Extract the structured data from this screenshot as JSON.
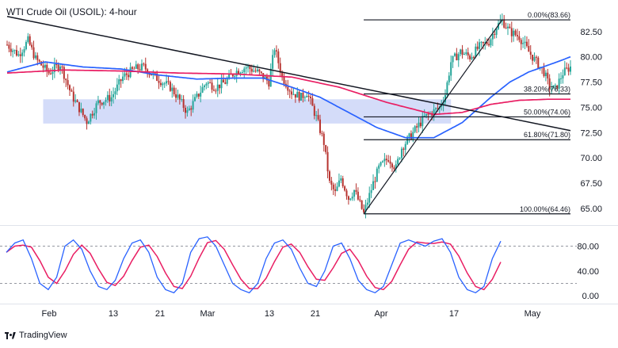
{
  "chart_data": {
    "type": "candlestick",
    "title": "WTI Crude Oil (USOIL): 4-hour",
    "symbol": "USOIL",
    "timeframe": "4-hour",
    "price_axis": {
      "ticks": [
        "82.50",
        "80.00",
        "77.50",
        "75.00",
        "72.50",
        "70.00",
        "67.50",
        "65.00"
      ],
      "ylim": [
        63.5,
        85.0
      ]
    },
    "x_axis": {
      "ticks": [
        "Feb",
        "13",
        "21",
        "Mar",
        "13",
        "21",
        "Apr",
        "17",
        "May"
      ]
    },
    "price_path": [
      [
        0,
        81.2
      ],
      [
        6,
        80.2
      ],
      [
        11,
        81.6
      ],
      [
        15,
        79.8
      ],
      [
        22,
        78.4
      ],
      [
        28,
        79.3
      ],
      [
        34,
        76.2
      ],
      [
        42,
        73.6
      ],
      [
        48,
        75.5
      ],
      [
        55,
        76.0
      ],
      [
        61,
        78.0
      ],
      [
        67,
        78.8
      ],
      [
        72,
        79.0
      ],
      [
        78,
        78.0
      ],
      [
        82,
        77.5
      ],
      [
        86,
        77.0
      ],
      [
        90,
        76.0
      ],
      [
        95,
        74.5
      ],
      [
        100,
        76.0
      ],
      [
        105,
        77.5
      ],
      [
        110,
        77.0
      ],
      [
        115,
        77.5
      ],
      [
        120,
        78.5
      ],
      [
        126,
        79.0
      ],
      [
        132,
        78.5
      ],
      [
        138,
        77.5
      ],
      [
        141,
        80.9
      ],
      [
        145,
        78.0
      ],
      [
        150,
        76.5
      ],
      [
        155,
        76.0
      ],
      [
        158,
        76.5
      ],
      [
        163,
        74.0
      ],
      [
        167,
        71.5
      ],
      [
        170,
        67.5
      ],
      [
        173,
        66.5
      ],
      [
        176,
        68.0
      ],
      [
        180,
        66.0
      ],
      [
        183,
        66.8
      ],
      [
        188,
        64.5
      ],
      [
        193,
        67.5
      ],
      [
        196,
        69.0
      ],
      [
        201,
        70.0
      ],
      [
        205,
        69.0
      ],
      [
        208,
        71.0
      ],
      [
        214,
        72.5
      ],
      [
        220,
        74.0
      ],
      [
        224,
        74.5
      ],
      [
        228,
        75.0
      ],
      [
        231,
        76.3
      ],
      [
        234,
        79.5
      ],
      [
        239,
        80.5
      ],
      [
        244,
        80.0
      ],
      [
        249,
        81.0
      ],
      [
        254,
        81.5
      ],
      [
        258,
        83.0
      ],
      [
        261,
        83.6
      ],
      [
        265,
        82.5
      ],
      [
        270,
        82.0
      ],
      [
        275,
        80.5
      ],
      [
        279,
        79.5
      ],
      [
        283,
        78.5
      ],
      [
        286,
        77.0
      ],
      [
        289,
        76.8
      ],
      [
        293,
        78.4
      ],
      [
        297,
        79.0
      ]
    ],
    "moving_averages": [
      {
        "color": "#2962ff",
        "values": [
          [
            0,
            78.5
          ],
          [
            20,
            79.5
          ],
          [
            40,
            79.0
          ],
          [
            60,
            78.8
          ],
          [
            80,
            78.2
          ],
          [
            100,
            77.8
          ],
          [
            120,
            77.9
          ],
          [
            135,
            77.9
          ],
          [
            150,
            77.0
          ],
          [
            165,
            76.0
          ],
          [
            180,
            74.5
          ],
          [
            195,
            73.0
          ],
          [
            210,
            72.0
          ],
          [
            225,
            72.0
          ],
          [
            240,
            73.5
          ],
          [
            255,
            76.0
          ],
          [
            265,
            77.5
          ],
          [
            275,
            78.5
          ],
          [
            290,
            79.5
          ],
          [
            297,
            80.0
          ]
        ]
      },
      {
        "color": "#e91e63",
        "values": [
          [
            0,
            78.4
          ],
          [
            30,
            78.7
          ],
          [
            60,
            78.6
          ],
          [
            90,
            78.4
          ],
          [
            120,
            78.3
          ],
          [
            150,
            78.0
          ],
          [
            175,
            77.0
          ],
          [
            200,
            75.5
          ],
          [
            225,
            74.3
          ],
          [
            240,
            74.5
          ],
          [
            255,
            75.3
          ],
          [
            270,
            75.7
          ],
          [
            285,
            75.8
          ],
          [
            297,
            75.8
          ]
        ]
      }
    ],
    "support_zone": [
      73.4,
      75.8
    ],
    "trendline": {
      "start": [
        0,
        84.0
      ],
      "end": [
        297,
        72.7
      ]
    },
    "swing_line": {
      "start": [
        188,
        64.46
      ],
      "end": [
        261,
        83.66
      ]
    },
    "fibonacci_levels": [
      {
        "label": "0.00%(83.66)",
        "value": 83.66
      },
      {
        "label": "38.20%(76.33)",
        "value": 76.33
      },
      {
        "label": "50.00%(74.06)",
        "value": 74.06
      },
      {
        "label": "61.80%(71.80)",
        "value": 71.8
      },
      {
        "label": "100.00%(64.46)",
        "value": 64.46
      }
    ],
    "oscillator": {
      "ticks": [
        "80.00",
        "40.00",
        "0.00"
      ],
      "ylim": [
        -10,
        110
      ],
      "levels": [
        80,
        20
      ],
      "k_color": "#2962ff",
      "d_color": "#e91e63",
      "k_values": [
        70,
        85,
        90,
        60,
        20,
        10,
        30,
        80,
        90,
        75,
        40,
        15,
        10,
        25,
        60,
        85,
        90,
        70,
        30,
        10,
        5,
        20,
        70,
        92,
        95,
        80,
        50,
        20,
        10,
        5,
        20,
        60,
        85,
        90,
        75,
        45,
        20,
        15,
        40,
        80,
        85,
        60,
        25,
        10,
        5,
        15,
        50,
        85,
        90,
        85,
        80,
        88,
        92,
        70,
        30,
        10,
        5,
        15,
        60,
        88
      ]
    }
  },
  "footer": {
    "brand": "TradingView"
  }
}
